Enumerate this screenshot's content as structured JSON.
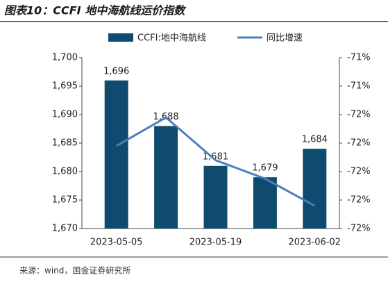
{
  "chart_data": {
    "type": "bar",
    "title": "图表10：CCFI 地中海航线运价指数",
    "categories": [
      "2023-05-05",
      null,
      "2023-05-19",
      null,
      "2023-06-02"
    ],
    "series": [
      {
        "name": "CCFI:地中海航线",
        "type": "bar",
        "color": "#0f4a6f",
        "values": [
          1696,
          1688,
          1681,
          1679,
          1684
        ],
        "value_labels": [
          "1,696",
          "1,688",
          "1,681",
          "1,679",
          "1,684"
        ]
      },
      {
        "name": "同比增速",
        "type": "line",
        "color": "#4a7ebf",
        "axis": "y2",
        "values": [
          -71.82,
          -71.62,
          -71.92,
          -72.05,
          -72.24
        ]
      }
    ],
    "ylim": [
      1670,
      1700
    ],
    "yticks": [
      {
        "value": 1670,
        "label": "1,670"
      },
      {
        "value": 1675,
        "label": "1,675"
      },
      {
        "value": 1680,
        "label": "1,680"
      },
      {
        "value": 1685,
        "label": "1,685"
      },
      {
        "value": 1690,
        "label": "1,690"
      },
      {
        "value": 1695,
        "label": "1,695"
      },
      {
        "value": 1700,
        "label": "1,700"
      }
    ],
    "y2lim": [
      -72.4,
      -71.2
    ],
    "y2ticks": [
      {
        "value": -72.4,
        "label": "-72%"
      },
      {
        "value": -72.2,
        "label": "-72%"
      },
      {
        "value": -72.0,
        "label": "-72%"
      },
      {
        "value": -71.8,
        "label": "-72%"
      },
      {
        "value": -71.6,
        "label": "-72%"
      },
      {
        "value": -71.4,
        "label": "-71%"
      },
      {
        "value": -71.2,
        "label": "-71%"
      }
    ],
    "grid": false,
    "legend": "top",
    "source": "来源：wind，国金证券研究所"
  }
}
